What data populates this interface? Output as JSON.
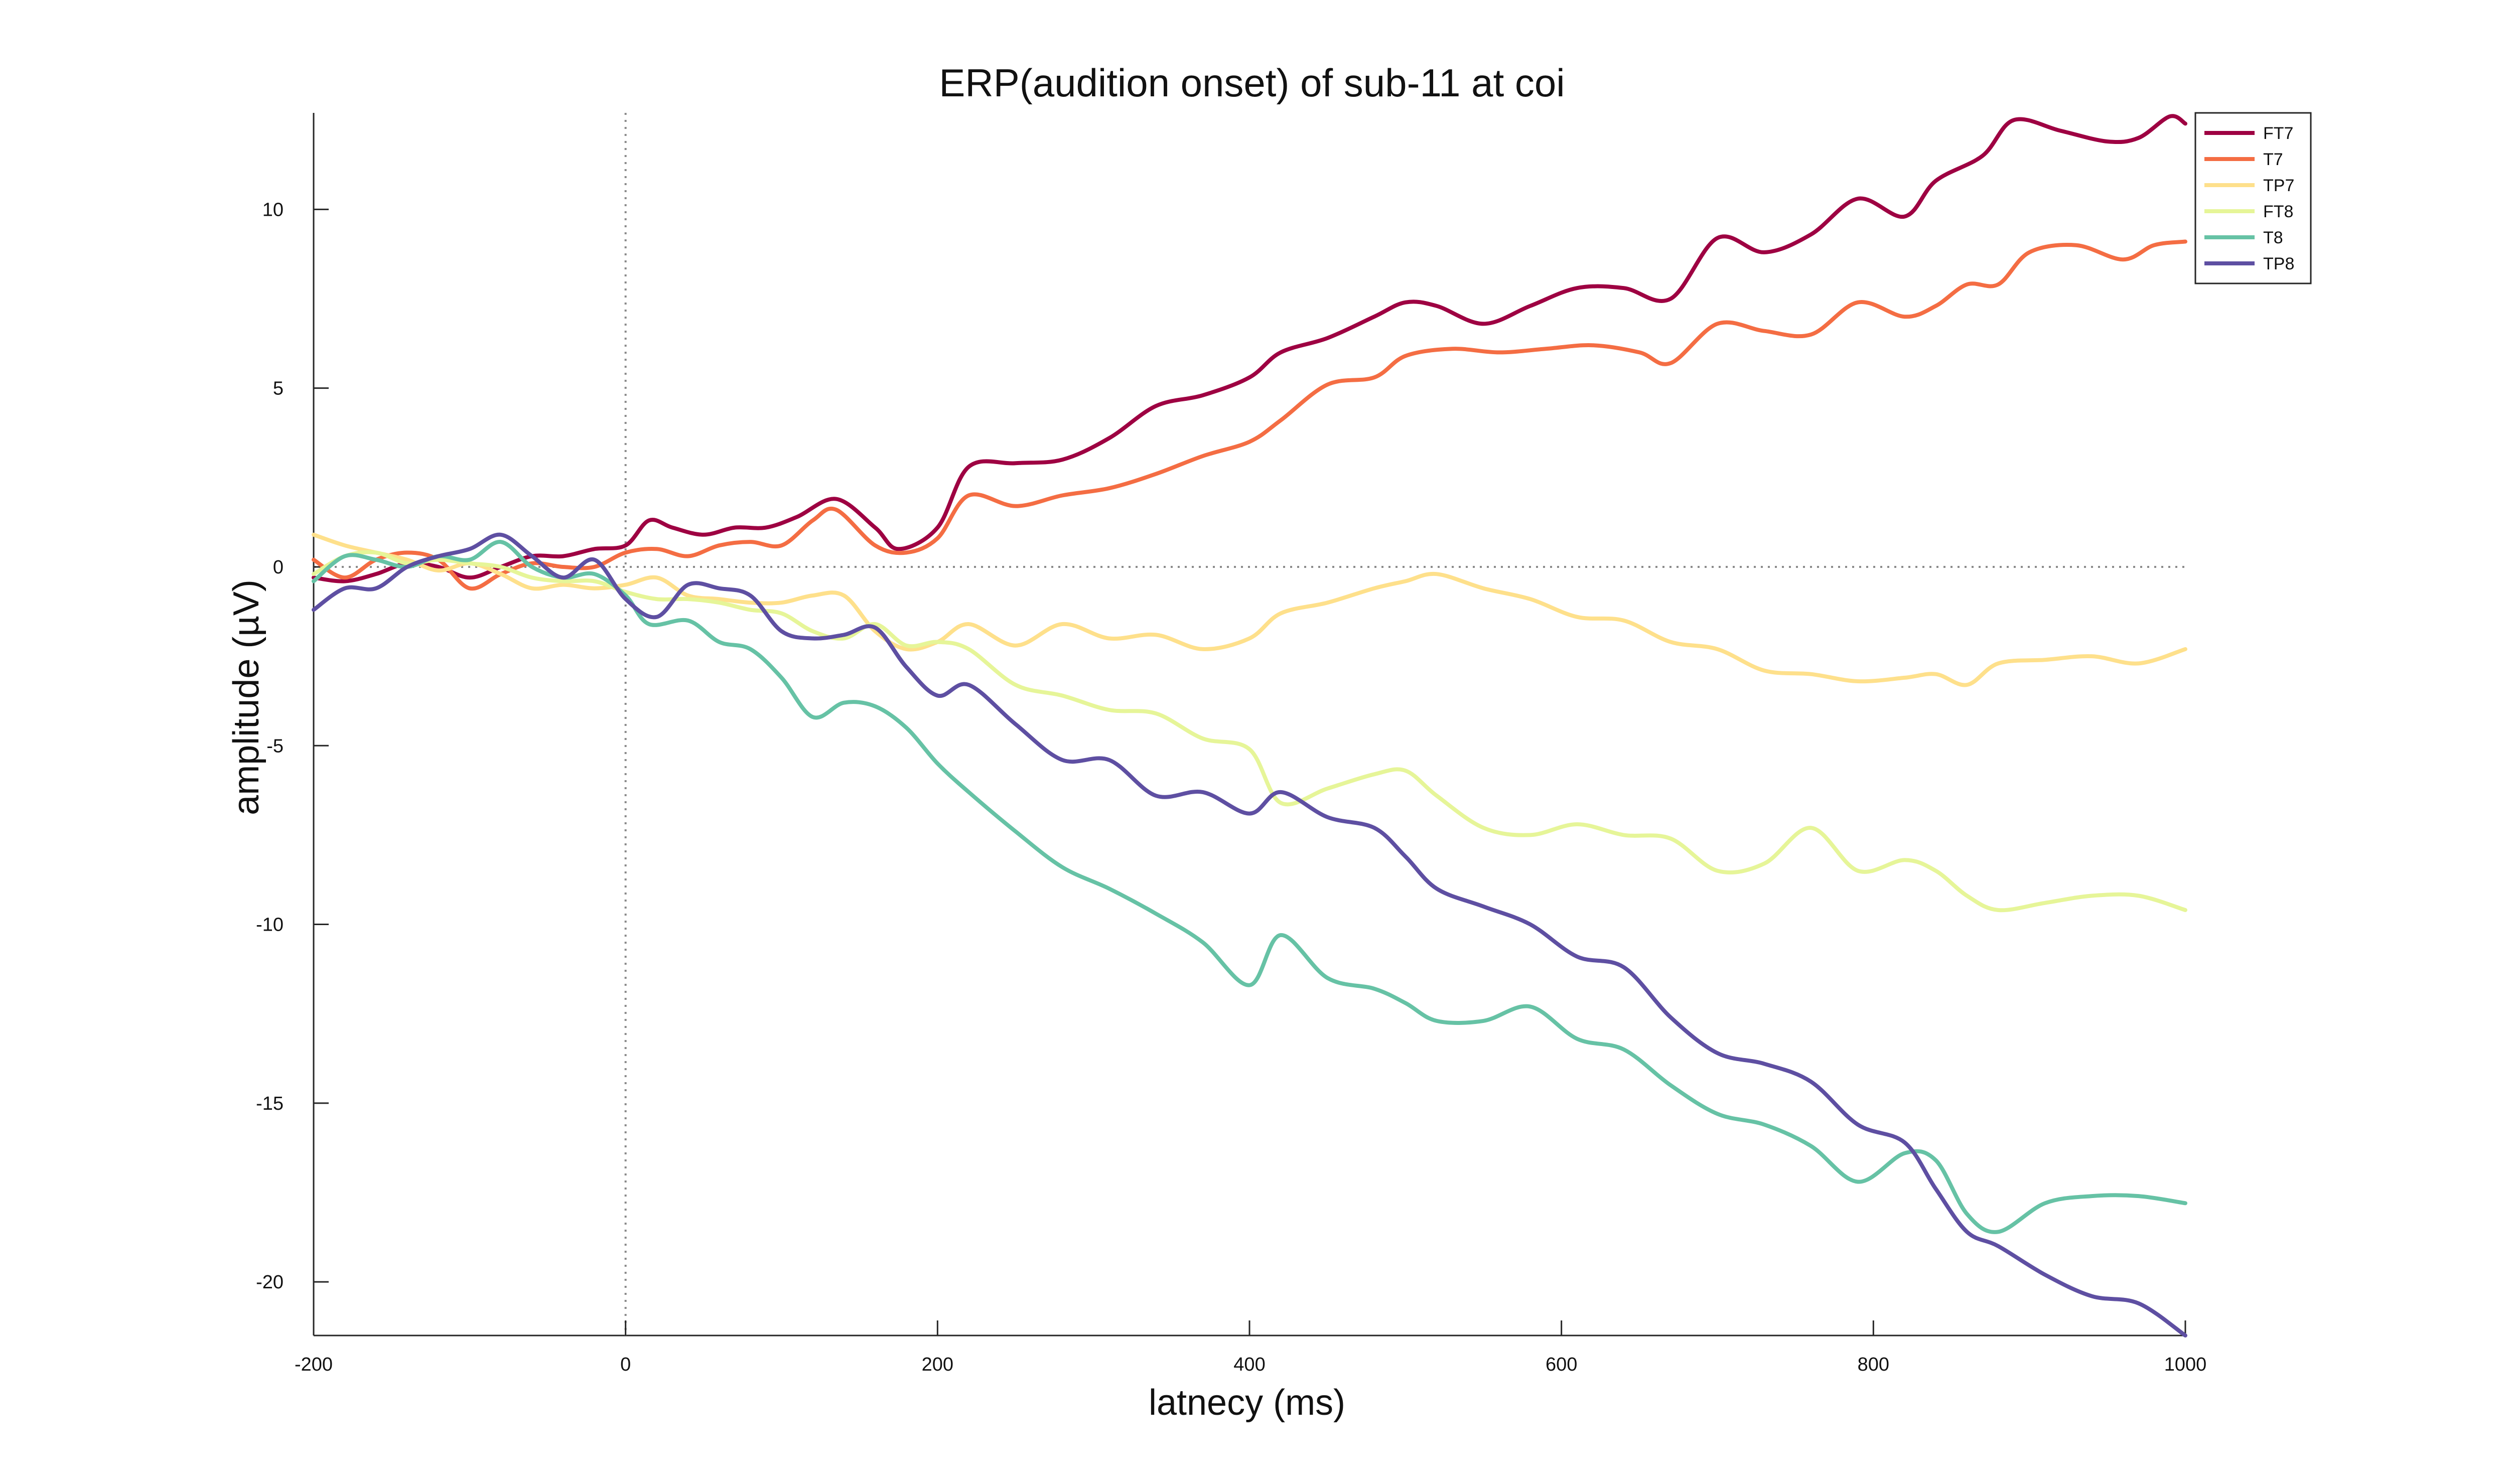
{
  "chart_data": {
    "type": "line",
    "title": "ERP(audition onset) of sub-11 at coi",
    "xlabel": "latnecy (ms)",
    "ylabel": "amplitude (µV)",
    "xlim": [
      -200,
      1000
    ],
    "ylim": [
      -21.5,
      12.7
    ],
    "x_ticks": [
      -200,
      0,
      200,
      400,
      600,
      800,
      1000
    ],
    "y_ticks": [
      -20,
      -15,
      -10,
      -5,
      0,
      5,
      10
    ],
    "x_tick_labels": [
      "-200",
      "0",
      "200",
      "400",
      "600",
      "800",
      "1000"
    ],
    "y_tick_labels": [
      "-20",
      "-15",
      "-10",
      "-5",
      "0",
      "5",
      "10"
    ],
    "reference_lines": {
      "x": 0,
      "y": 0,
      "style": "dotted"
    },
    "legend_position": "top-right",
    "grid": false,
    "series": [
      {
        "name": "FT7",
        "color": "#9e0142",
        "points": [
          [
            -200,
            -0.3
          ],
          [
            -180,
            -0.4
          ],
          [
            -160,
            -0.2
          ],
          [
            -140,
            0.1
          ],
          [
            -120,
            0.0
          ],
          [
            -100,
            -0.3
          ],
          [
            -80,
            0.0
          ],
          [
            -60,
            0.3
          ],
          [
            -40,
            0.3
          ],
          [
            -20,
            0.5
          ],
          [
            0,
            0.6
          ],
          [
            15,
            1.3
          ],
          [
            30,
            1.1
          ],
          [
            50,
            0.9
          ],
          [
            70,
            1.1
          ],
          [
            90,
            1.1
          ],
          [
            110,
            1.4
          ],
          [
            135,
            1.9
          ],
          [
            160,
            1.1
          ],
          [
            175,
            0.5
          ],
          [
            200,
            1.1
          ],
          [
            220,
            2.8
          ],
          [
            250,
            2.9
          ],
          [
            280,
            3.0
          ],
          [
            310,
            3.6
          ],
          [
            340,
            4.5
          ],
          [
            370,
            4.8
          ],
          [
            400,
            5.3
          ],
          [
            420,
            6.0
          ],
          [
            450,
            6.4
          ],
          [
            480,
            7.0
          ],
          [
            500,
            7.4
          ],
          [
            520,
            7.3
          ],
          [
            550,
            6.8
          ],
          [
            580,
            7.3
          ],
          [
            610,
            7.8
          ],
          [
            640,
            7.8
          ],
          [
            670,
            7.5
          ],
          [
            700,
            9.2
          ],
          [
            730,
            8.8
          ],
          [
            760,
            9.3
          ],
          [
            790,
            10.3
          ],
          [
            820,
            9.8
          ],
          [
            840,
            10.8
          ],
          [
            870,
            11.5
          ],
          [
            890,
            12.5
          ],
          [
            920,
            12.2
          ],
          [
            950,
            11.9
          ],
          [
            970,
            12.0
          ],
          [
            990,
            12.6
          ],
          [
            1000,
            12.4
          ]
        ]
      },
      {
        "name": "T7",
        "color": "#f46d43",
        "points": [
          [
            -200,
            0.2
          ],
          [
            -180,
            -0.3
          ],
          [
            -160,
            0.2
          ],
          [
            -140,
            0.4
          ],
          [
            -120,
            0.2
          ],
          [
            -100,
            -0.6
          ],
          [
            -80,
            -0.2
          ],
          [
            -60,
            0.1
          ],
          [
            -40,
            0.0
          ],
          [
            -20,
            0.0
          ],
          [
            0,
            0.4
          ],
          [
            20,
            0.5
          ],
          [
            40,
            0.3
          ],
          [
            60,
            0.6
          ],
          [
            80,
            0.7
          ],
          [
            100,
            0.6
          ],
          [
            120,
            1.3
          ],
          [
            135,
            1.6
          ],
          [
            160,
            0.6
          ],
          [
            180,
            0.4
          ],
          [
            200,
            0.8
          ],
          [
            220,
            2.0
          ],
          [
            250,
            1.7
          ],
          [
            280,
            2.0
          ],
          [
            310,
            2.2
          ],
          [
            340,
            2.6
          ],
          [
            370,
            3.1
          ],
          [
            400,
            3.5
          ],
          [
            420,
            4.1
          ],
          [
            450,
            5.1
          ],
          [
            480,
            5.3
          ],
          [
            500,
            5.9
          ],
          [
            530,
            6.1
          ],
          [
            560,
            6.0
          ],
          [
            590,
            6.1
          ],
          [
            620,
            6.2
          ],
          [
            650,
            6.0
          ],
          [
            670,
            5.7
          ],
          [
            700,
            6.8
          ],
          [
            730,
            6.6
          ],
          [
            760,
            6.5
          ],
          [
            790,
            7.4
          ],
          [
            820,
            7.0
          ],
          [
            840,
            7.3
          ],
          [
            860,
            7.9
          ],
          [
            880,
            7.9
          ],
          [
            900,
            8.8
          ],
          [
            930,
            9.0
          ],
          [
            960,
            8.6
          ],
          [
            980,
            9.0
          ],
          [
            1000,
            9.1
          ]
        ]
      },
      {
        "name": "TP7",
        "color": "#fee08b",
        "points": [
          [
            -200,
            0.9
          ],
          [
            -180,
            0.6
          ],
          [
            -160,
            0.4
          ],
          [
            -140,
            0.2
          ],
          [
            -120,
            -0.1
          ],
          [
            -100,
            0.1
          ],
          [
            -80,
            -0.2
          ],
          [
            -60,
            -0.6
          ],
          [
            -40,
            -0.5
          ],
          [
            -20,
            -0.6
          ],
          [
            0,
            -0.5
          ],
          [
            20,
            -0.3
          ],
          [
            40,
            -0.8
          ],
          [
            60,
            -0.9
          ],
          [
            80,
            -1.0
          ],
          [
            100,
            -1.0
          ],
          [
            120,
            -0.8
          ],
          [
            140,
            -0.8
          ],
          [
            160,
            -1.8
          ],
          [
            180,
            -2.3
          ],
          [
            200,
            -2.1
          ],
          [
            220,
            -1.6
          ],
          [
            250,
            -2.2
          ],
          [
            280,
            -1.6
          ],
          [
            310,
            -2.0
          ],
          [
            340,
            -1.9
          ],
          [
            370,
            -2.3
          ],
          [
            400,
            -2.0
          ],
          [
            420,
            -1.3
          ],
          [
            450,
            -1.0
          ],
          [
            480,
            -0.6
          ],
          [
            500,
            -0.4
          ],
          [
            520,
            -0.2
          ],
          [
            550,
            -0.6
          ],
          [
            580,
            -0.9
          ],
          [
            610,
            -1.4
          ],
          [
            640,
            -1.5
          ],
          [
            670,
            -2.1
          ],
          [
            700,
            -2.3
          ],
          [
            730,
            -2.9
          ],
          [
            760,
            -3.0
          ],
          [
            790,
            -3.2
          ],
          [
            820,
            -3.1
          ],
          [
            840,
            -3.0
          ],
          [
            860,
            -3.3
          ],
          [
            880,
            -2.7
          ],
          [
            910,
            -2.6
          ],
          [
            940,
            -2.5
          ],
          [
            970,
            -2.7
          ],
          [
            1000,
            -2.3
          ]
        ]
      },
      {
        "name": "FT8",
        "color": "#e6f598",
        "points": [
          [
            -200,
            -0.2
          ],
          [
            -180,
            0.3
          ],
          [
            -160,
            0.4
          ],
          [
            -140,
            0.1
          ],
          [
            -120,
            0.2
          ],
          [
            -100,
            0.1
          ],
          [
            -80,
            0.0
          ],
          [
            -60,
            -0.3
          ],
          [
            -40,
            -0.4
          ],
          [
            -20,
            -0.4
          ],
          [
            0,
            -0.7
          ],
          [
            20,
            -0.9
          ],
          [
            40,
            -0.9
          ],
          [
            60,
            -1.0
          ],
          [
            80,
            -1.2
          ],
          [
            100,
            -1.3
          ],
          [
            120,
            -1.8
          ],
          [
            140,
            -2.0
          ],
          [
            160,
            -1.6
          ],
          [
            180,
            -2.2
          ],
          [
            200,
            -2.1
          ],
          [
            220,
            -2.3
          ],
          [
            250,
            -3.3
          ],
          [
            280,
            -3.6
          ],
          [
            310,
            -4.0
          ],
          [
            340,
            -4.1
          ],
          [
            370,
            -4.8
          ],
          [
            400,
            -5.1
          ],
          [
            420,
            -6.6
          ],
          [
            450,
            -6.2
          ],
          [
            480,
            -5.8
          ],
          [
            500,
            -5.7
          ],
          [
            520,
            -6.4
          ],
          [
            550,
            -7.3
          ],
          [
            580,
            -7.5
          ],
          [
            610,
            -7.2
          ],
          [
            640,
            -7.5
          ],
          [
            670,
            -7.6
          ],
          [
            700,
            -8.5
          ],
          [
            730,
            -8.3
          ],
          [
            760,
            -7.3
          ],
          [
            790,
            -8.5
          ],
          [
            820,
            -8.2
          ],
          [
            840,
            -8.5
          ],
          [
            860,
            -9.2
          ],
          [
            880,
            -9.6
          ],
          [
            910,
            -9.4
          ],
          [
            940,
            -9.2
          ],
          [
            970,
            -9.2
          ],
          [
            1000,
            -9.6
          ]
        ]
      },
      {
        "name": "T8",
        "color": "#66c2a5",
        "points": [
          [
            -200,
            -0.4
          ],
          [
            -180,
            0.3
          ],
          [
            -160,
            0.2
          ],
          [
            -140,
            0.0
          ],
          [
            -120,
            0.3
          ],
          [
            -100,
            0.2
          ],
          [
            -80,
            0.7
          ],
          [
            -60,
            0.0
          ],
          [
            -40,
            -0.3
          ],
          [
            -20,
            -0.2
          ],
          [
            0,
            -0.8
          ],
          [
            15,
            -1.6
          ],
          [
            40,
            -1.5
          ],
          [
            60,
            -2.1
          ],
          [
            80,
            -2.3
          ],
          [
            100,
            -3.1
          ],
          [
            120,
            -4.2
          ],
          [
            140,
            -3.8
          ],
          [
            160,
            -3.9
          ],
          [
            180,
            -4.5
          ],
          [
            200,
            -5.5
          ],
          [
            220,
            -6.3
          ],
          [
            250,
            -7.4
          ],
          [
            280,
            -8.4
          ],
          [
            310,
            -9.0
          ],
          [
            340,
            -9.7
          ],
          [
            370,
            -10.5
          ],
          [
            400,
            -11.7
          ],
          [
            420,
            -10.3
          ],
          [
            450,
            -11.5
          ],
          [
            480,
            -11.8
          ],
          [
            500,
            -12.2
          ],
          [
            520,
            -12.7
          ],
          [
            550,
            -12.7
          ],
          [
            580,
            -12.3
          ],
          [
            610,
            -13.2
          ],
          [
            640,
            -13.5
          ],
          [
            670,
            -14.5
          ],
          [
            700,
            -15.3
          ],
          [
            730,
            -15.6
          ],
          [
            760,
            -16.2
          ],
          [
            790,
            -17.2
          ],
          [
            820,
            -16.4
          ],
          [
            840,
            -16.6
          ],
          [
            860,
            -18.1
          ],
          [
            880,
            -18.6
          ],
          [
            910,
            -17.8
          ],
          [
            940,
            -17.6
          ],
          [
            970,
            -17.6
          ],
          [
            1000,
            -17.8
          ]
        ]
      },
      {
        "name": "TP8",
        "color": "#5e4fa2",
        "points": [
          [
            -200,
            -1.2
          ],
          [
            -180,
            -0.6
          ],
          [
            -160,
            -0.6
          ],
          [
            -140,
            0.0
          ],
          [
            -120,
            0.3
          ],
          [
            -100,
            0.5
          ],
          [
            -80,
            0.9
          ],
          [
            -60,
            0.3
          ],
          [
            -40,
            -0.3
          ],
          [
            -20,
            0.2
          ],
          [
            0,
            -0.9
          ],
          [
            20,
            -1.4
          ],
          [
            40,
            -0.5
          ],
          [
            60,
            -0.6
          ],
          [
            80,
            -0.8
          ],
          [
            100,
            -1.8
          ],
          [
            120,
            -2.0
          ],
          [
            140,
            -1.9
          ],
          [
            160,
            -1.7
          ],
          [
            180,
            -2.8
          ],
          [
            200,
            -3.6
          ],
          [
            220,
            -3.3
          ],
          [
            250,
            -4.4
          ],
          [
            280,
            -5.4
          ],
          [
            310,
            -5.4
          ],
          [
            340,
            -6.4
          ],
          [
            370,
            -6.3
          ],
          [
            400,
            -6.9
          ],
          [
            420,
            -6.3
          ],
          [
            450,
            -7.0
          ],
          [
            480,
            -7.3
          ],
          [
            500,
            -8.1
          ],
          [
            520,
            -9.0
          ],
          [
            550,
            -9.5
          ],
          [
            580,
            -10.0
          ],
          [
            610,
            -10.9
          ],
          [
            640,
            -11.2
          ],
          [
            670,
            -12.6
          ],
          [
            700,
            -13.6
          ],
          [
            730,
            -13.9
          ],
          [
            760,
            -14.4
          ],
          [
            790,
            -15.6
          ],
          [
            820,
            -16.1
          ],
          [
            840,
            -17.4
          ],
          [
            860,
            -18.6
          ],
          [
            880,
            -19.0
          ],
          [
            910,
            -19.8
          ],
          [
            940,
            -20.4
          ],
          [
            970,
            -20.6
          ],
          [
            1000,
            -21.5
          ]
        ]
      }
    ]
  }
}
